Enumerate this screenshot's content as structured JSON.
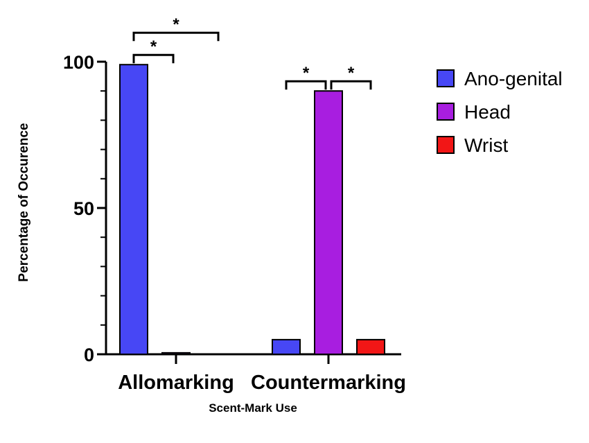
{
  "chart_data": {
    "type": "bar",
    "categories": [
      "Allomarking",
      "Countermarking"
    ],
    "series": [
      {
        "name": "Ano-genital",
        "color": "#4747F5",
        "values": [
          99,
          5
        ]
      },
      {
        "name": "Head",
        "color": "#A81EE0",
        "values": [
          0.5,
          90
        ]
      },
      {
        "name": "Wrist",
        "color": "#F21616",
        "values": [
          0,
          5
        ]
      }
    ],
    "xlabel": "Scent-Mark Use",
    "ylabel": "Percentage of Occurence",
    "ylim": [
      0,
      100
    ],
    "yticks": [
      0,
      50,
      100
    ],
    "ytick_labels": [
      "0",
      "50",
      "100"
    ],
    "grid": false,
    "legend_position": "right",
    "significance": [
      {
        "category": 0,
        "from_series": 0,
        "to_series": 1,
        "label": "*"
      },
      {
        "category": 0,
        "from_series": 0,
        "to_series": 2,
        "label": "*"
      },
      {
        "category": 1,
        "from_series": 0,
        "to_series": 1,
        "label": "*"
      },
      {
        "category": 1,
        "from_series": 1,
        "to_series": 2,
        "label": "*"
      }
    ]
  }
}
